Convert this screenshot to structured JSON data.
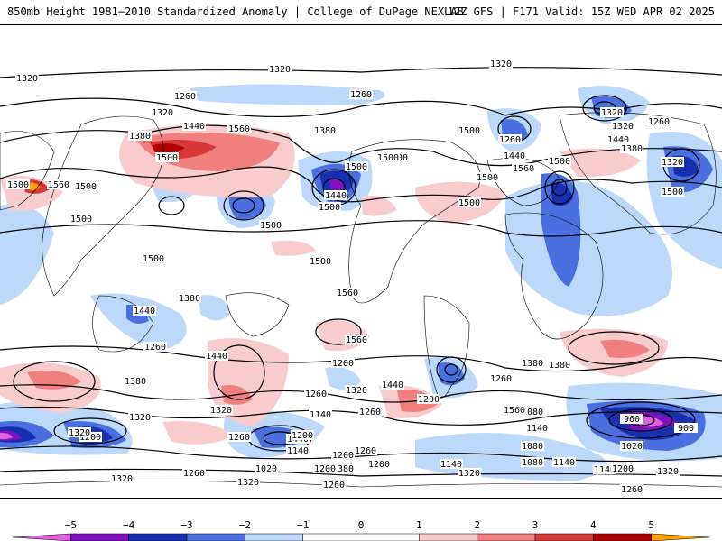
{
  "header": {
    "title": "850mb Height 1981−2010 Standardized Anomaly | College of DuPage NEXLAB",
    "run_info": "12Z GFS | F171 Valid: 15Z WED APR 02 2025"
  },
  "colors": {
    "neg5": "#e060e0",
    "neg4": "#8010c0",
    "neg3": "#1830b0",
    "neg2": "#4a70e0",
    "neg1": "#bcd8fa",
    "zero": "#ffffff",
    "pos1": "#f8cccc",
    "pos2": "#f08080",
    "pos3": "#d83838",
    "pos4": "#b00000",
    "pos5": "#ffa000",
    "contour": "#000000",
    "coast": "#000000"
  },
  "colorbar": {
    "tick_labels": [
      "−5",
      "−4",
      "−3",
      "−2",
      "−1",
      "0",
      "1",
      "2",
      "3",
      "4",
      "5"
    ],
    "ticks": [
      -5,
      -4,
      -3,
      -2,
      -1,
      0,
      1,
      2,
      3,
      4,
      5
    ],
    "range": [
      -6,
      6
    ]
  },
  "contour_labels": [
    "1320",
    "1320",
    "1320",
    "1260",
    "1260",
    "1320",
    "1380",
    "1440",
    "1560",
    "1500",
    "1500",
    "1560",
    "1500",
    "1500",
    "1380",
    "1500",
    "1440",
    "1500",
    "1500",
    "1500",
    "1500",
    "1560",
    "1500",
    "1320",
    "1440",
    "1260",
    "1320",
    "1380",
    "1260",
    "1440",
    "1500",
    "1500",
    "1320",
    "1500",
    "1560",
    "1500",
    "1500",
    "1500",
    "1380",
    "1440",
    "1260",
    "1560",
    "1440",
    "1380",
    "1260",
    "1380",
    "1200",
    "1260",
    "1320",
    "1440",
    "1260",
    "1140",
    "1200",
    "1080",
    "1140",
    "1320",
    "1200",
    "1260",
    "1380",
    "1320",
    "1440",
    "1200",
    "1260",
    "1200",
    "1320",
    "1260",
    "1320",
    "1140",
    "1200",
    "1080",
    "1200",
    "1260",
    "1320",
    "1020",
    "1140",
    "1140",
    "1020",
    "960",
    "900",
    "1080",
    "1140",
    "1200",
    "1320",
    "1320",
    "1260",
    "1380",
    "1560"
  ]
}
